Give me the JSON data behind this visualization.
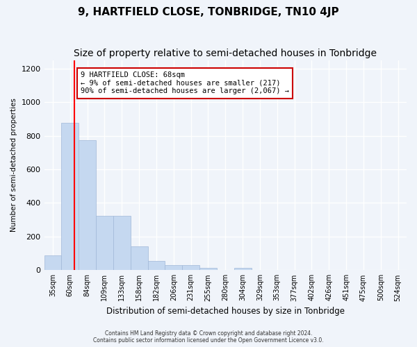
{
  "title": "9, HARTFIELD CLOSE, TONBRIDGE, TN10 4JP",
  "subtitle": "Size of property relative to semi-detached houses in Tonbridge",
  "xlabel": "Distribution of semi-detached houses by size in Tonbridge",
  "ylabel": "Number of semi-detached properties",
  "bin_labels": [
    "35sqm",
    "60sqm",
    "84sqm",
    "109sqm",
    "133sqm",
    "158sqm",
    "182sqm",
    "206sqm",
    "231sqm",
    "255sqm",
    "280sqm",
    "304sqm",
    "329sqm",
    "353sqm",
    "377sqm",
    "402sqm",
    "426sqm",
    "451sqm",
    "475sqm",
    "500sqm",
    "524sqm"
  ],
  "bar_values": [
    88,
    875,
    775,
    325,
    325,
    140,
    55,
    30,
    30,
    15,
    0,
    15,
    0,
    0,
    0,
    0,
    0,
    0,
    0,
    0,
    0
  ],
  "bar_color": "#c5d8f0",
  "bar_edge_color": "#a0b8d8",
  "red_line_x": 1.27,
  "annotation_text": "9 HARTFIELD CLOSE: 68sqm\n← 9% of semi-detached houses are smaller (217)\n90% of semi-detached houses are larger (2,067) →",
  "ylim": [
    0,
    1250
  ],
  "yticks": [
    0,
    200,
    400,
    600,
    800,
    1000,
    1200
  ],
  "footer1": "Contains HM Land Registry data © Crown copyright and database right 2024.",
  "footer2": "Contains public sector information licensed under the Open Government Licence v3.0.",
  "background_color": "#f0f4fa",
  "grid_color": "#ffffff",
  "title_fontsize": 11,
  "subtitle_fontsize": 10,
  "annotation_box_color": "#ffffff",
  "annotation_box_edge": "#cc0000"
}
